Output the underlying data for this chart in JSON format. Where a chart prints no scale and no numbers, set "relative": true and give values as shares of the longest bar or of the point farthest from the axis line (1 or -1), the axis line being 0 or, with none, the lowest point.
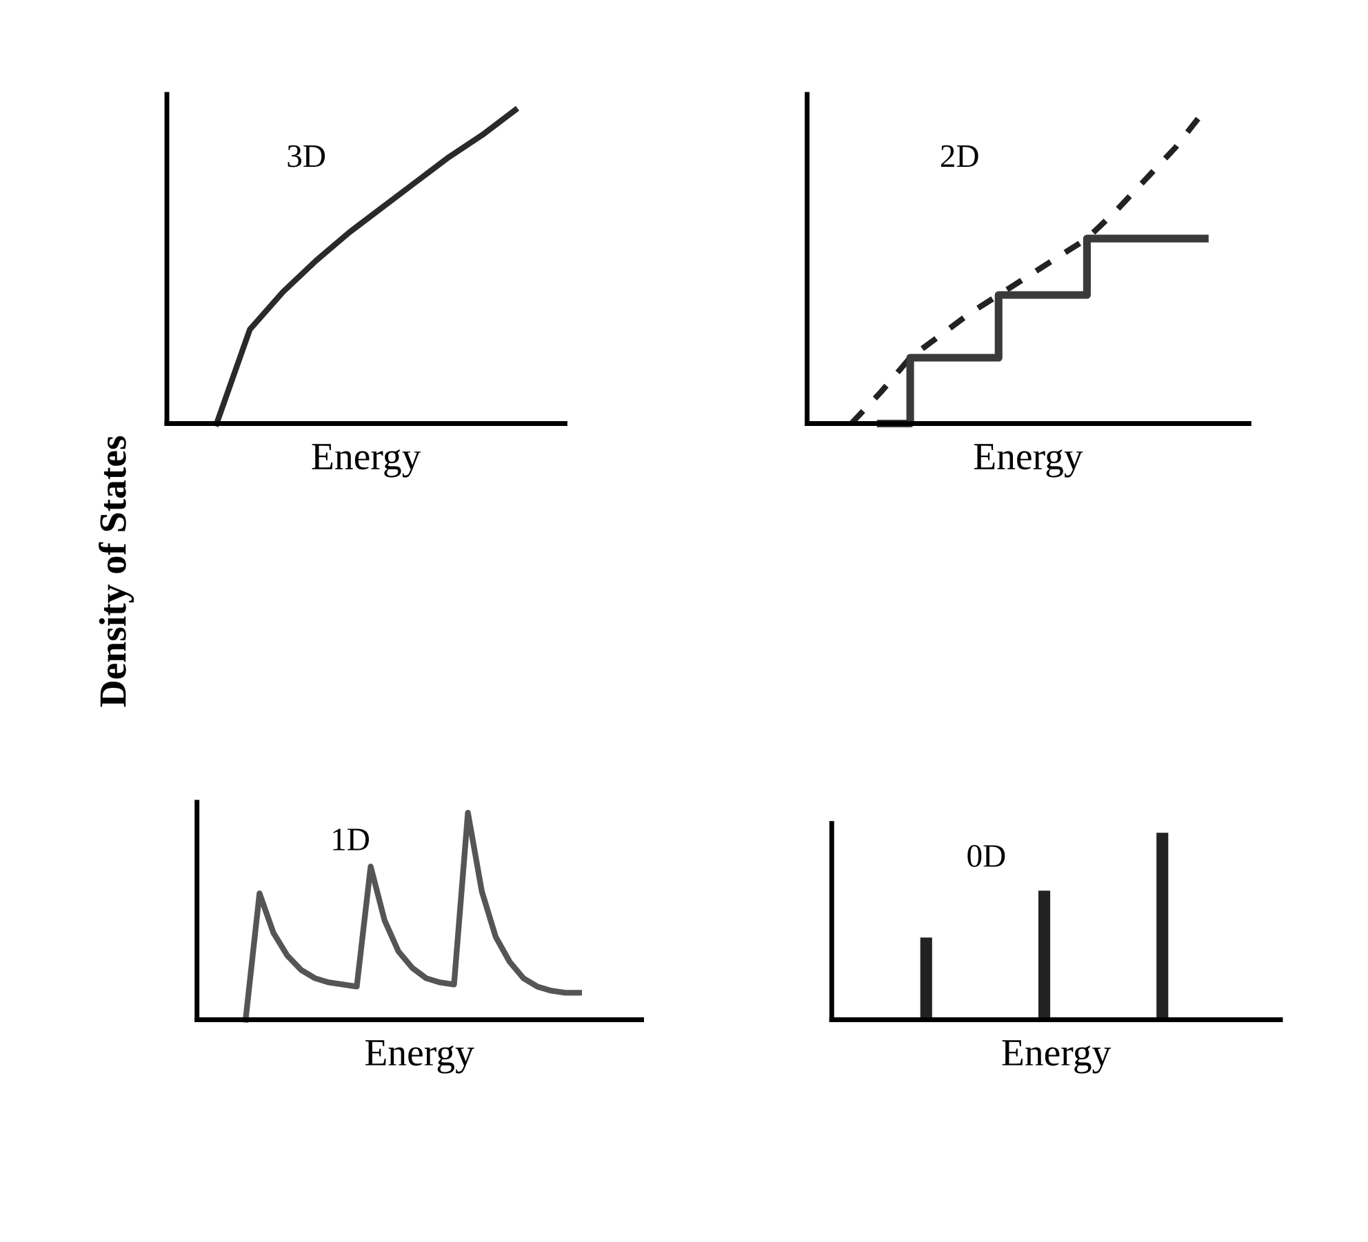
{
  "chart_data": [
    {
      "type": "line",
      "relative": true,
      "ylabel": "Density of States",
      "xlabel": "Energy",
      "annotations": [
        "3D"
      ],
      "categories": [
        null,
        null,
        null,
        null,
        null,
        null,
        null,
        null,
        null,
        null,
        null,
        null
      ],
      "series": [
        {
          "color": "#2a2a2a",
          "values": [
            null,
            0,
            0.3,
            0.42,
            0.52,
            0.61,
            0.69,
            0.77,
            0.85,
            0.92,
            1.0,
            null
          ]
        }
      ]
    },
    {
      "type": "line",
      "relative": true,
      "xlabel": "Energy",
      "annotations": [
        "2D"
      ],
      "categories": [
        null,
        null,
        null,
        null,
        null,
        null,
        null,
        null,
        null,
        null,
        null,
        null,
        null,
        null,
        null
      ],
      "series": [
        {
          "color": "#222222",
          "line_style": "dashed",
          "values": [
            null,
            0,
            0.1,
            0.21,
            0.28,
            0.35,
            0.41,
            0.47,
            0.53,
            0.59,
            0.68,
            0.78,
            0.88,
            1.0,
            null
          ]
        },
        {
          "type": "step",
          "color": "#3a3a3a",
          "values": [
            null,
            null,
            0,
            0.21,
            0.21,
            0.21,
            0.41,
            0.41,
            0.41,
            0.59,
            0.59,
            0.59,
            0.59,
            0.59,
            null
          ]
        }
      ]
    },
    {
      "type": "line",
      "relative": true,
      "xlabel": "Energy",
      "annotations": [
        "1D"
      ],
      "categories": [
        null,
        null,
        null,
        null,
        null,
        null,
        null,
        null,
        null,
        null,
        null,
        null,
        null,
        null,
        null,
        null,
        null,
        null,
        null,
        null,
        null,
        null,
        null,
        null,
        null,
        null,
        null,
        null,
        null,
        null,
        null,
        null
      ],
      "series": [
        {
          "color": "#555555",
          "values": [
            null,
            null,
            null,
            0,
            0.61,
            0.42,
            0.31,
            0.24,
            0.2,
            0.18,
            0.17,
            0.16,
            0.74,
            0.48,
            0.33,
            0.25,
            0.2,
            0.18,
            0.17,
            1.0,
            0.62,
            0.4,
            0.28,
            0.2,
            0.16,
            0.14,
            0.13,
            0.13,
            null,
            null,
            null,
            null
          ]
        }
      ]
    },
    {
      "type": "bar",
      "relative": true,
      "xlabel": "Energy",
      "annotations": [
        "0D"
      ],
      "categories": [
        null,
        null,
        null
      ],
      "series": [
        {
          "color": "#222222",
          "values": [
            0.44,
            0.69,
            1.0
          ]
        }
      ]
    }
  ]
}
